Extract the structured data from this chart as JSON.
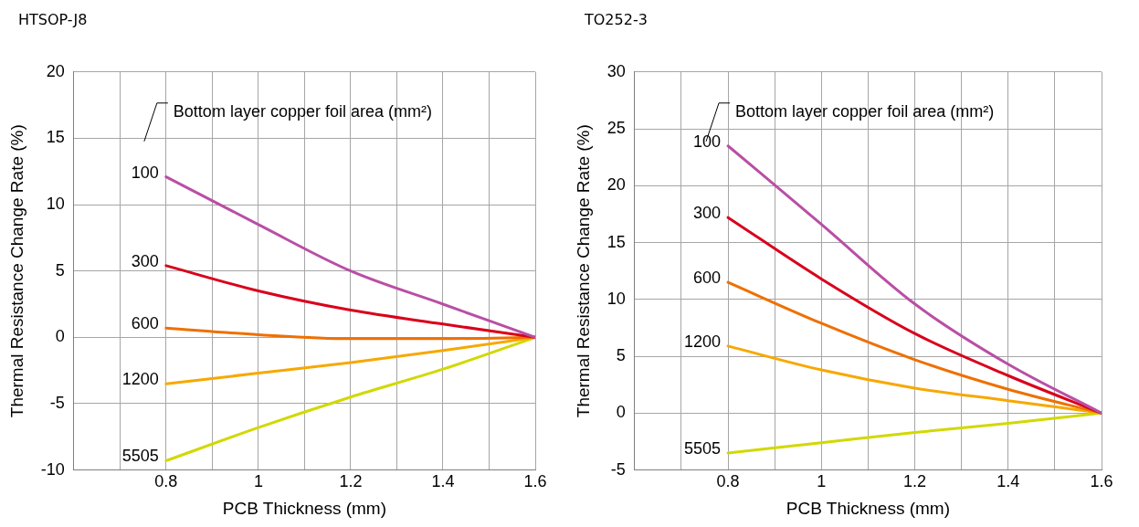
{
  "chart_data": [
    {
      "type": "line",
      "title": "HTSOP-J8",
      "xlabel": "PCB Thickness (mm)",
      "ylabel": "Thermal Resistance Change Rate (%)",
      "legend_title": "Bottom layer copper foil area (mm²)",
      "x": [
        0.8,
        1.0,
        1.2,
        1.4,
        1.6
      ],
      "xlim": [
        0.6,
        1.6
      ],
      "xticks": [
        {
          "value": 0.6,
          "label": null
        },
        {
          "value": 0.7,
          "label": null
        },
        0.8,
        {
          "value": 0.9,
          "label": null
        },
        1,
        {
          "value": 1.1,
          "label": null
        },
        1.2,
        {
          "value": 1.3,
          "label": null
        },
        1.4,
        {
          "value": 1.5,
          "label": null
        },
        1.6
      ],
      "ylim": [
        -10,
        20
      ],
      "yticks": [
        -10,
        -5,
        0,
        5,
        10,
        15,
        20
      ],
      "grid": true,
      "legend": false,
      "marker": "none",
      "line_style": "solid",
      "series": [
        {
          "name": "100",
          "color": "#b94fa5",
          "values": [
            12.1,
            8.5,
            5.0,
            2.5,
            0
          ]
        },
        {
          "name": "300",
          "color": "#d9001b",
          "values": [
            5.4,
            3.5,
            2.05,
            1.0,
            0
          ]
        },
        {
          "name": "600",
          "color": "#ee7000",
          "values": [
            0.7,
            0.2,
            -0.1,
            -0.1,
            0
          ]
        },
        {
          "name": "1200",
          "color": "#f7a800",
          "values": [
            -3.5,
            -2.7,
            -1.9,
            -1.0,
            0
          ]
        },
        {
          "name": "5505",
          "color": "#d2d800",
          "values": [
            -9.3,
            -6.8,
            -4.5,
            -2.4,
            0
          ]
        }
      ]
    },
    {
      "type": "line",
      "title": "TO252-3",
      "xlabel": "PCB Thickness (mm)",
      "ylabel": "Thermal Resistance Change Rate (%)",
      "legend_title": "Bottom layer copper foil area (mm²)",
      "x": [
        0.8,
        1.0,
        1.2,
        1.4,
        1.6
      ],
      "xlim": [
        0.6,
        1.6
      ],
      "xticks": [
        {
          "value": 0.6,
          "label": null
        },
        {
          "value": 0.7,
          "label": null
        },
        0.8,
        {
          "value": 0.9,
          "label": null
        },
        1,
        {
          "value": 1.1,
          "label": null
        },
        1.2,
        {
          "value": 1.3,
          "label": null
        },
        1.4,
        {
          "value": 1.5,
          "label": null
        },
        1.6
      ],
      "ylim": [
        -5,
        30
      ],
      "yticks": [
        -5,
        0,
        5,
        10,
        15,
        20,
        25,
        30
      ],
      "grid": true,
      "legend": false,
      "marker": "none",
      "line_style": "solid",
      "series": [
        {
          "name": "100",
          "color": "#b94fa5",
          "values": [
            23.5,
            16.6,
            9.6,
            4.3,
            0
          ]
        },
        {
          "name": "300",
          "color": "#d9001b",
          "values": [
            17.2,
            11.8,
            7.0,
            3.3,
            0
          ]
        },
        {
          "name": "600",
          "color": "#ee7000",
          "values": [
            11.5,
            7.9,
            4.7,
            2.1,
            0
          ]
        },
        {
          "name": "1200",
          "color": "#f7a800",
          "values": [
            5.9,
            3.8,
            2.2,
            1.1,
            0
          ]
        },
        {
          "name": "5505",
          "color": "#d2d800",
          "values": [
            -3.5,
            -2.6,
            -1.7,
            -0.9,
            0
          ]
        }
      ]
    }
  ]
}
